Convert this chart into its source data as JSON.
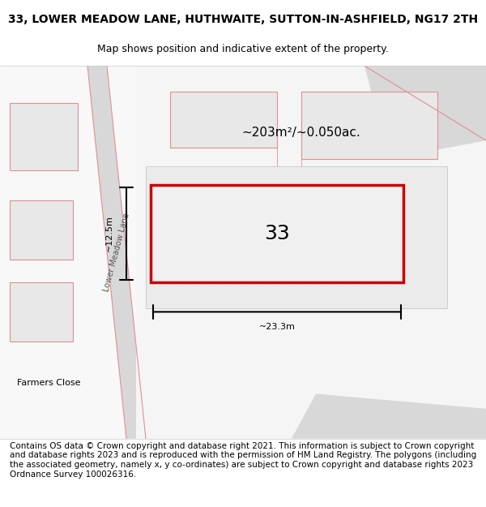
{
  "title": "33, LOWER MEADOW LANE, HUTHWAITE, SUTTON-IN-ASHFIELD, NG17 2TH",
  "subtitle": "Map shows position and indicative extent of the property.",
  "footer": "Contains OS data © Crown copyright and database right 2021. This information is subject to Crown copyright and database rights 2023 and is reproduced with the permission of HM Land Registry. The polygons (including the associated geometry, namely x, y co-ordinates) are subject to Crown copyright and database rights 2023 Ordnance Survey 100026316.",
  "area_text": "~203m²/~0.050ac.",
  "dim_width": "~23.3m",
  "dim_height": "~12.5m",
  "property_number": "33",
  "bg_color": "#f5f5f5",
  "map_bg": "#ffffff",
  "road_color": "#f0f0f0",
  "plot_color": "#e8e8e8",
  "boundary_color": "#cc0000",
  "road_line_color": "#e8a0a0",
  "title_fontsize": 10,
  "subtitle_fontsize": 9,
  "footer_fontsize": 7.5
}
